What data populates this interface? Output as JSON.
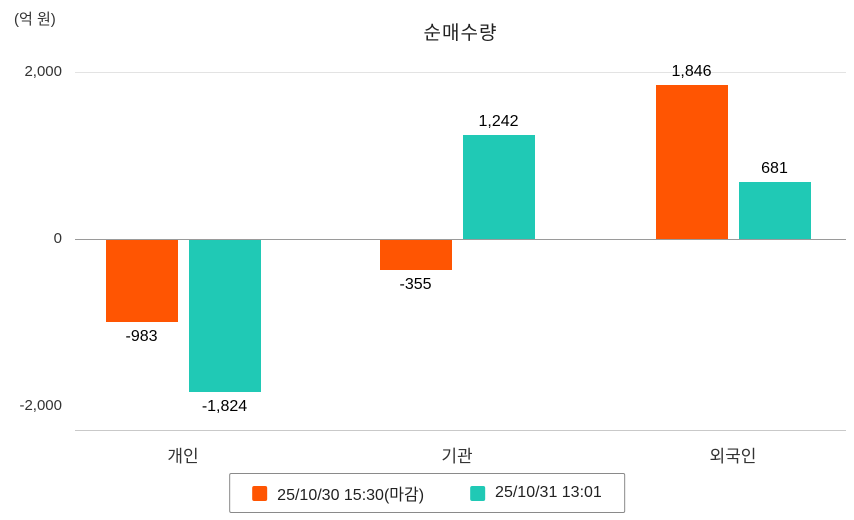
{
  "title": "순매수량",
  "unit_label": "(억 원)",
  "chart_data": {
    "type": "bar",
    "title": "순매수량",
    "ylabel": "(억 원)",
    "categories": [
      "개인",
      "기관",
      "외국인"
    ],
    "series": [
      {
        "name": "25/10/30 15:30(마감)",
        "color": "#FF5502",
        "values": [
          -983,
          -355,
          1846
        ]
      },
      {
        "name": "25/10/31 13:01",
        "color": "#20C9B5",
        "values": [
          -1824,
          1242,
          681
        ]
      }
    ],
    "value_labels": [
      [
        "-983",
        "-355",
        "1,846"
      ],
      [
        "-1,824",
        "1,242",
        "681"
      ]
    ],
    "yticks": [
      {
        "value": 2000,
        "label": "2,000"
      },
      {
        "value": 0,
        "label": "0"
      },
      {
        "value": -2000,
        "label": "-2,000"
      }
    ],
    "ylim": [
      -2400,
      2400
    ],
    "grid": "horizontal",
    "legend_position": "bottom"
  }
}
